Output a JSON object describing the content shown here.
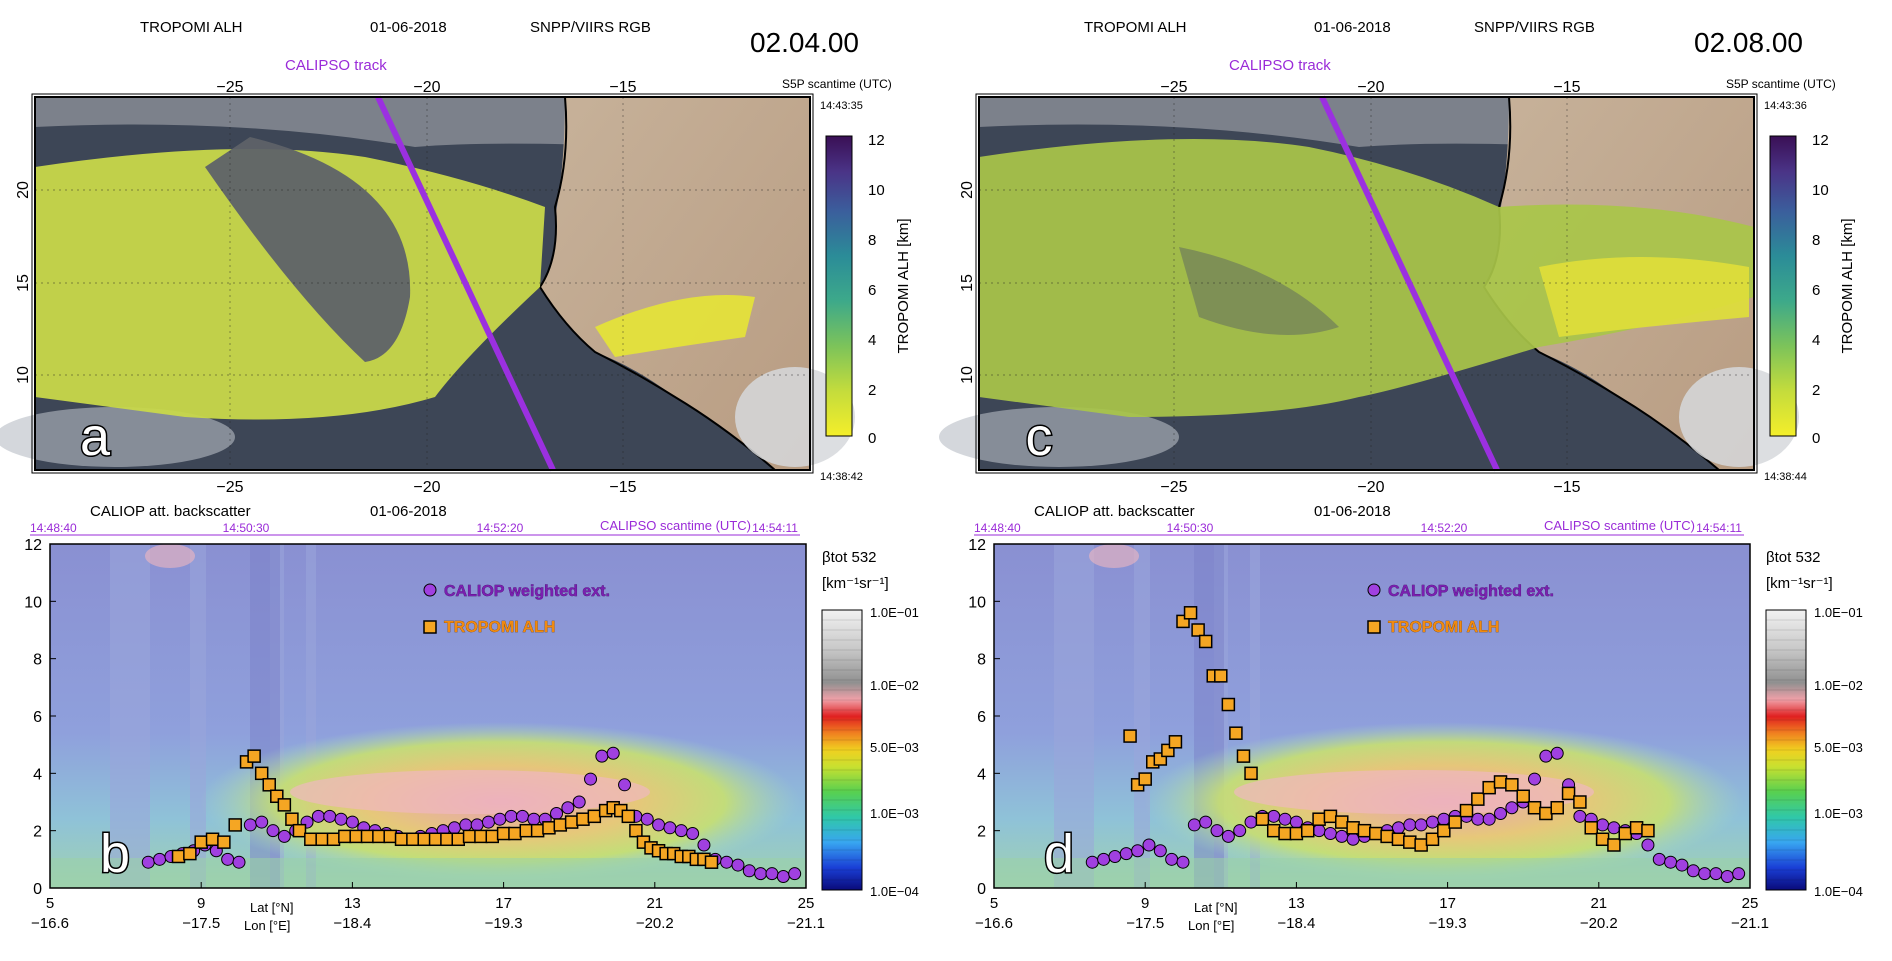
{
  "colors": {
    "calipso": "#9b30e0",
    "calipso_text": "#9a2bd8",
    "tropomi_marker": "#f5a623",
    "caliop_marker": "#a040e0",
    "ocean": "#3d4656",
    "land": "#c4a88c",
    "aerosol": "#c8d84a",
    "curtain": "#8f95d8"
  },
  "panels": [
    {
      "id": "left",
      "map": {
        "title_product": "TROPOMI ALH",
        "date": "01-06-2018",
        "rgb_label": "SNPP/VIIRS RGB",
        "time": "02.04.00",
        "track_label": "CALIPSO track",
        "scantime_label": "S5P scantime (UTC)",
        "scantime_top": "14:43:35",
        "scantime_bottom": "14:38:42",
        "letter": "a",
        "lon_ticks_top": [
          "−25",
          "−20",
          "−15"
        ],
        "lon_ticks_bottom": [
          "−25",
          "−20",
          "−15"
        ],
        "lat_ticks": [
          "20",
          "15",
          "10"
        ],
        "colorbar_label": "TROPOMI ALH [km]",
        "colorbar_ticks": [
          "12",
          "10",
          "8",
          "6",
          "4",
          "2",
          "0"
        ]
      },
      "curtain": {
        "title": "CALIOP att. backscatter",
        "date": "01-06-2018",
        "time_ticks": [
          "14:48:40",
          "14:50:30",
          "14:52:20",
          "14:54:11"
        ],
        "scantime_label": "CALIPSO scantime (UTC)",
        "y_ticks": [
          "12",
          "10",
          "8",
          "6",
          "4",
          "2",
          "0"
        ],
        "lat_ticks": [
          "5",
          "9",
          "13",
          "17",
          "21",
          "25"
        ],
        "lon_ticks": [
          "−16.6",
          "−17.5",
          "−18.4",
          "−19.3",
          "−20.2",
          "−21.1"
        ],
        "lat_label": "Lat [°N]",
        "lon_label": "Lon [°E]",
        "legend_caliop": "CALIOP weighted ext.",
        "legend_tropomi": "TROPOMI ALH",
        "letter": "b",
        "cb_title": "βtot 532",
        "cb_units": "[km⁻¹sr⁻¹]",
        "cb_ticks": [
          "1.0E−01",
          "1.0E−02",
          "5.0E−03",
          "1.0E−03",
          "1.0E−04"
        ]
      }
    },
    {
      "id": "right",
      "map": {
        "title_product": "TROPOMI ALH",
        "date": "01-06-2018",
        "rgb_label": "SNPP/VIIRS RGB",
        "time": "02.08.00",
        "track_label": "CALIPSO track",
        "scantime_label": "S5P scantime (UTC)",
        "scantime_top": "14:43:36",
        "scantime_bottom": "14:38:44",
        "letter": "c",
        "lon_ticks_top": [
          "−25",
          "−20",
          "−15"
        ],
        "lon_ticks_bottom": [
          "−25",
          "−20",
          "−15"
        ],
        "lat_ticks": [
          "20",
          "15",
          "10"
        ],
        "colorbar_label": "TROPOMI ALH [km]",
        "colorbar_ticks": [
          "12",
          "10",
          "8",
          "6",
          "4",
          "2",
          "0"
        ]
      },
      "curtain": {
        "title": "CALIOP att. backscatter",
        "date": "01-06-2018",
        "time_ticks": [
          "14:48:40",
          "14:50:30",
          "14:52:20",
          "14:54:11"
        ],
        "scantime_label": "CALIPSO scantime (UTC)",
        "y_ticks": [
          "12",
          "10",
          "8",
          "6",
          "4",
          "2",
          "0"
        ],
        "lat_ticks": [
          "5",
          "9",
          "13",
          "17",
          "21",
          "25"
        ],
        "lon_ticks": [
          "−16.6",
          "−17.5",
          "−18.4",
          "−19.3",
          "−20.2",
          "−21.1"
        ],
        "lat_label": "Lat [°N]",
        "lon_label": "Lon [°E]",
        "legend_caliop": "CALIOP weighted ext.",
        "legend_tropomi": "TROPOMI ALH",
        "letter": "d",
        "cb_title": "βtot 532",
        "cb_units": "[km⁻¹sr⁻¹]",
        "cb_ticks": [
          "1.0E−01",
          "1.0E−02",
          "5.0E−03",
          "1.0E−03",
          "1.0E−04"
        ]
      }
    }
  ],
  "chart_data": [
    {
      "type": "scatter",
      "panel": "b",
      "title": "CALIOP att. backscatter",
      "xlabel": "Lat [°N] / Lon [°E]",
      "ylabel": "",
      "xlim": [
        5,
        25
      ],
      "ylim": [
        0,
        12
      ],
      "series": [
        {
          "name": "CALIOP weighted ext.",
          "x": [
            7.6,
            7.9,
            8.2,
            8.5,
            8.8,
            9.1,
            9.4,
            9.7,
            10.0,
            10.3,
            10.6,
            10.9,
            11.2,
            11.5,
            11.8,
            12.1,
            12.4,
            12.7,
            13.0,
            13.3,
            13.6,
            13.9,
            14.2,
            14.5,
            14.8,
            15.1,
            15.4,
            15.7,
            16.0,
            16.3,
            16.6,
            16.9,
            17.2,
            17.5,
            17.8,
            18.1,
            18.4,
            18.7,
            19.0,
            19.3,
            19.6,
            19.9,
            20.2,
            20.5,
            20.8,
            21.1,
            21.4,
            21.7,
            22.0,
            22.3,
            22.6,
            22.9,
            23.2,
            23.5,
            23.8,
            24.1,
            24.4,
            24.7
          ],
          "y": [
            0.9,
            1.0,
            1.1,
            1.2,
            1.3,
            1.5,
            1.3,
            1.0,
            0.9,
            2.2,
            2.3,
            2.0,
            1.8,
            2.0,
            2.3,
            2.5,
            2.5,
            2.4,
            2.3,
            2.1,
            2.0,
            1.9,
            1.8,
            1.7,
            1.8,
            1.9,
            2.0,
            2.1,
            2.2,
            2.2,
            2.3,
            2.4,
            2.5,
            2.5,
            2.4,
            2.4,
            2.6,
            2.8,
            3.0,
            3.8,
            4.6,
            4.7,
            3.6,
            2.5,
            2.4,
            2.2,
            2.1,
            2.0,
            1.9,
            1.5,
            1.0,
            0.9,
            0.8,
            0.6,
            0.5,
            0.5,
            0.4,
            0.5
          ]
        },
        {
          "name": "TROPOMI ALH",
          "x": [
            8.4,
            8.7,
            9.0,
            9.3,
            9.6,
            9.9,
            10.2,
            10.4,
            10.6,
            10.8,
            11.0,
            11.2,
            11.4,
            11.6,
            11.9,
            12.2,
            12.5,
            12.8,
            13.1,
            13.4,
            13.7,
            14.0,
            14.3,
            14.6,
            14.9,
            15.2,
            15.5,
            15.8,
            16.1,
            16.4,
            16.7,
            17.0,
            17.3,
            17.6,
            17.9,
            18.2,
            18.5,
            18.8,
            19.1,
            19.4,
            19.7,
            19.9,
            20.1,
            20.3,
            20.5,
            20.7,
            20.9,
            21.1,
            21.3,
            21.5,
            21.7,
            21.9,
            22.1,
            22.3,
            22.5
          ],
          "y": [
            1.1,
            1.2,
            1.6,
            1.7,
            1.6,
            2.2,
            4.4,
            4.6,
            4.0,
            3.6,
            3.2,
            2.9,
            2.4,
            2.0,
            1.7,
            1.7,
            1.7,
            1.8,
            1.8,
            1.8,
            1.8,
            1.8,
            1.7,
            1.7,
            1.7,
            1.7,
            1.7,
            1.7,
            1.8,
            1.8,
            1.8,
            1.9,
            1.9,
            2.0,
            2.0,
            2.1,
            2.2,
            2.3,
            2.4,
            2.5,
            2.7,
            2.8,
            2.7,
            2.5,
            2.0,
            1.6,
            1.4,
            1.3,
            1.2,
            1.2,
            1.1,
            1.1,
            1.0,
            1.0,
            0.9
          ]
        }
      ]
    },
    {
      "type": "scatter",
      "panel": "d",
      "title": "CALIOP att. backscatter",
      "xlabel": "Lat [°N] / Lon [°E]",
      "ylabel": "",
      "xlim": [
        5,
        25
      ],
      "ylim": [
        0,
        12
      ],
      "series": [
        {
          "name": "CALIOP weighted ext.",
          "x": [
            7.6,
            7.9,
            8.2,
            8.5,
            8.8,
            9.1,
            9.4,
            9.7,
            10.0,
            10.3,
            10.6,
            10.9,
            11.2,
            11.5,
            11.8,
            12.1,
            12.4,
            12.7,
            13.0,
            13.3,
            13.6,
            13.9,
            14.2,
            14.5,
            14.8,
            15.1,
            15.4,
            15.7,
            16.0,
            16.3,
            16.6,
            16.9,
            17.2,
            17.5,
            17.8,
            18.1,
            18.4,
            18.7,
            19.0,
            19.3,
            19.6,
            19.9,
            20.2,
            20.5,
            20.8,
            21.1,
            21.4,
            21.7,
            22.0,
            22.3,
            22.6,
            22.9,
            23.2,
            23.5,
            23.8,
            24.1,
            24.4,
            24.7
          ],
          "y": [
            0.9,
            1.0,
            1.1,
            1.2,
            1.3,
            1.5,
            1.3,
            1.0,
            0.9,
            2.2,
            2.3,
            2.0,
            1.8,
            2.0,
            2.3,
            2.5,
            2.5,
            2.4,
            2.3,
            2.1,
            2.0,
            1.9,
            1.8,
            1.7,
            1.8,
            1.9,
            2.0,
            2.1,
            2.2,
            2.2,
            2.3,
            2.4,
            2.5,
            2.5,
            2.4,
            2.4,
            2.6,
            2.8,
            3.0,
            3.8,
            4.6,
            4.7,
            3.6,
            2.5,
            2.4,
            2.2,
            2.1,
            2.0,
            1.9,
            1.5,
            1.0,
            0.9,
            0.8,
            0.6,
            0.5,
            0.5,
            0.4,
            0.5
          ]
        },
        {
          "name": "TROPOMI ALH",
          "x": [
            8.6,
            8.8,
            9.0,
            9.2,
            9.4,
            9.6,
            9.8,
            10.0,
            10.2,
            10.4,
            10.6,
            10.8,
            11.0,
            11.2,
            11.4,
            11.6,
            11.8,
            12.1,
            12.4,
            12.7,
            13.0,
            13.3,
            13.6,
            13.9,
            14.2,
            14.5,
            14.8,
            15.1,
            15.4,
            15.7,
            16.0,
            16.3,
            16.6,
            16.9,
            17.2,
            17.5,
            17.8,
            18.1,
            18.4,
            18.7,
            19.0,
            19.3,
            19.6,
            19.9,
            20.2,
            20.5,
            20.8,
            21.1,
            21.4,
            21.7,
            22.0,
            22.3
          ],
          "y": [
            5.3,
            3.6,
            3.8,
            4.4,
            4.5,
            4.8,
            5.1,
            9.3,
            9.6,
            9.0,
            8.6,
            7.4,
            7.4,
            6.4,
            5.4,
            4.6,
            4.0,
            2.4,
            2.0,
            1.9,
            1.9,
            2.0,
            2.4,
            2.5,
            2.3,
            2.1,
            2.0,
            1.9,
            1.8,
            1.7,
            1.6,
            1.5,
            1.7,
            2.0,
            2.3,
            2.7,
            3.1,
            3.5,
            3.7,
            3.6,
            3.2,
            2.8,
            2.6,
            2.8,
            3.3,
            3.0,
            2.1,
            1.7,
            1.5,
            1.9,
            2.1,
            2.0
          ]
        }
      ]
    }
  ]
}
